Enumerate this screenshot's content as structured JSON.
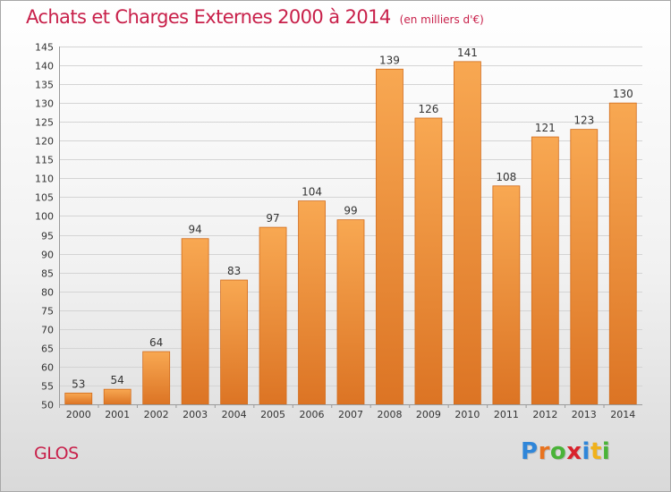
{
  "title": "Achats et Charges Externes 2000 à 2014",
  "unit": "(en milliers d'€)",
  "commune": "GLOS",
  "brand": {
    "letters": [
      "P",
      "r",
      "o",
      "x",
      "i",
      "t",
      "i"
    ],
    "colors": [
      "#2f86d9",
      "#e8731f",
      "#4ab339",
      "#d8222c",
      "#2f86d9",
      "#f0b21c",
      "#4ab339"
    ]
  },
  "colors": {
    "bar_top": "#f8a852",
    "bar_bottom": "#dc7424",
    "bar_edge": "#d26c1c",
    "title": "#c8204a",
    "grid": "#d4d4d4",
    "axis": "#9a9a9a"
  },
  "chart_data": {
    "type": "bar",
    "categories": [
      "2000",
      "2001",
      "2002",
      "2003",
      "2004",
      "2005",
      "2006",
      "2007",
      "2008",
      "2009",
      "2010",
      "2011",
      "2012",
      "2013",
      "2014"
    ],
    "values": [
      53,
      54,
      64,
      94,
      83,
      97,
      104,
      99,
      139,
      126,
      141,
      108,
      121,
      123,
      130
    ],
    "ylim": [
      50,
      145
    ],
    "yticks": [
      50,
      55,
      60,
      65,
      70,
      75,
      80,
      85,
      90,
      95,
      100,
      105,
      110,
      115,
      120,
      125,
      130,
      135,
      140,
      145
    ],
    "grid": true,
    "data_labels": true,
    "legend": "none"
  }
}
